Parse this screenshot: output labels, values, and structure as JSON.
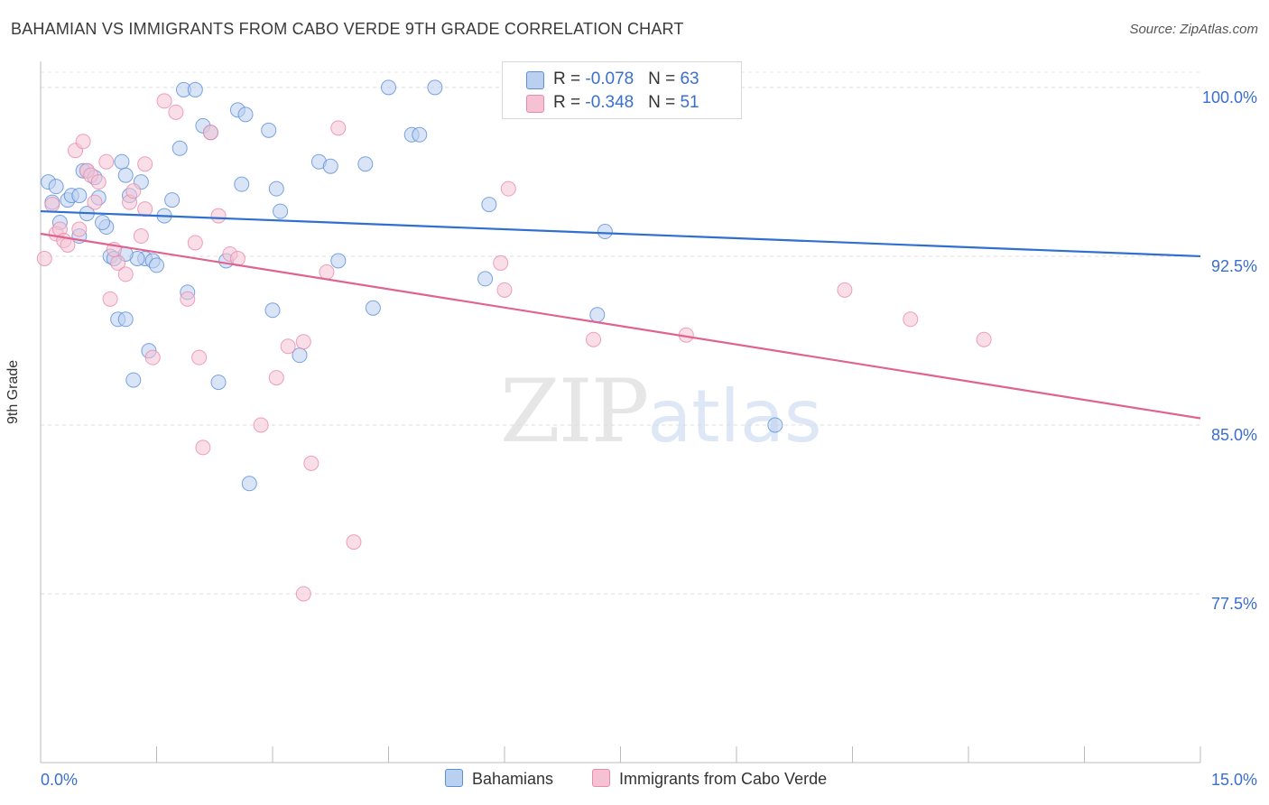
{
  "title": "BAHAMIAN VS IMMIGRANTS FROM CABO VERDE 9TH GRADE CORRELATION CHART",
  "source": "Source: ZipAtlas.com",
  "watermark": {
    "zip": "ZIP",
    "atlas": "atlas"
  },
  "legend": {
    "rows": [
      {
        "r_label": "R = ",
        "r_value": "-0.078",
        "n_label": "N = ",
        "n_value": "63"
      },
      {
        "r_label": "R = ",
        "r_value": "-0.348",
        "n_label": "N = ",
        "n_value": "51"
      }
    ]
  },
  "colors": {
    "blue": "#5b8fd8",
    "blue_fill": "#b9d0f1",
    "blue_line": "#2f6fcf",
    "pink": "#e98aab",
    "pink_fill": "#f6c2d3",
    "pink_line": "#e0638f",
    "tick_text": "#3a6fd0"
  },
  "chart_data": {
    "type": "scatter",
    "title": "BAHAMIAN VS IMMIGRANTS FROM CABO VERDE 9TH GRADE CORRELATION CHART",
    "xlabel": "",
    "ylabel": "9th Grade",
    "xlim": [
      0.0,
      15.0
    ],
    "ylim": [
      70.0,
      101.0
    ],
    "x_tick_labels": [
      "0.0%",
      "15.0%"
    ],
    "y_ticks": [
      100.0,
      92.5,
      85.0,
      77.5
    ],
    "y_tick_labels": [
      "100.0%",
      "92.5%",
      "85.0%",
      "77.5%"
    ],
    "series": [
      {
        "name": "Bahamians",
        "trend": {
          "x": [
            0.0,
            15.0
          ],
          "y": [
            94.5,
            92.5
          ]
        },
        "points": [
          [
            0.1,
            95.8
          ],
          [
            0.15,
            94.9
          ],
          [
            0.2,
            95.6
          ],
          [
            0.25,
            94.0
          ],
          [
            0.35,
            95.0
          ],
          [
            0.4,
            95.2
          ],
          [
            0.5,
            95.2
          ],
          [
            0.55,
            96.3
          ],
          [
            0.6,
            96.3
          ],
          [
            0.7,
            96.0
          ],
          [
            0.75,
            95.1
          ],
          [
            0.85,
            93.8
          ],
          [
            0.8,
            94.0
          ],
          [
            0.9,
            92.5
          ],
          [
            0.95,
            92.4
          ],
          [
            1.05,
            96.7
          ],
          [
            1.1,
            96.1
          ],
          [
            1.15,
            95.2
          ],
          [
            1.3,
            95.8
          ],
          [
            1.35,
            92.4
          ],
          [
            1.45,
            92.3
          ],
          [
            1.5,
            92.1
          ],
          [
            1.6,
            94.3
          ],
          [
            1.7,
            95.0
          ],
          [
            1.8,
            97.3
          ],
          [
            1.85,
            99.9
          ],
          [
            2.0,
            99.9
          ],
          [
            2.1,
            98.3
          ],
          [
            2.2,
            98.0
          ],
          [
            2.4,
            92.3
          ],
          [
            2.6,
            95.7
          ],
          [
            2.55,
            99.0
          ],
          [
            2.65,
            98.8
          ],
          [
            2.95,
            98.1
          ],
          [
            3.05,
            95.5
          ],
          [
            3.1,
            94.5
          ],
          [
            3.6,
            96.7
          ],
          [
            3.75,
            96.5
          ],
          [
            3.85,
            92.3
          ],
          [
            4.2,
            96.6
          ],
          [
            4.3,
            90.2
          ],
          [
            4.5,
            100.0
          ],
          [
            4.8,
            97.9
          ],
          [
            4.9,
            97.9
          ],
          [
            5.1,
            100.0
          ],
          [
            5.8,
            94.8
          ],
          [
            5.75,
            91.5
          ],
          [
            7.3,
            93.6
          ],
          [
            7.2,
            89.9
          ],
          [
            9.5,
            85.0
          ],
          [
            1.0,
            89.7
          ],
          [
            1.1,
            89.7
          ],
          [
            1.2,
            87.0
          ],
          [
            1.4,
            88.3
          ],
          [
            1.9,
            90.9
          ],
          [
            2.3,
            86.9
          ],
          [
            2.7,
            82.4
          ],
          [
            3.0,
            90.1
          ],
          [
            3.35,
            88.1
          ],
          [
            1.25,
            92.4
          ],
          [
            1.1,
            92.6
          ],
          [
            0.5,
            93.4
          ],
          [
            0.6,
            94.4
          ]
        ]
      },
      {
        "name": "Immigrants from Cabo Verde",
        "trend": {
          "x": [
            0.0,
            15.0
          ],
          "y": [
            93.5,
            85.3
          ]
        },
        "points": [
          [
            0.05,
            92.4
          ],
          [
            0.15,
            94.8
          ],
          [
            0.2,
            93.5
          ],
          [
            0.25,
            93.7
          ],
          [
            0.3,
            93.2
          ],
          [
            0.35,
            93.0
          ],
          [
            0.45,
            97.2
          ],
          [
            0.55,
            97.6
          ],
          [
            0.6,
            96.3
          ],
          [
            0.65,
            96.1
          ],
          [
            0.7,
            94.9
          ],
          [
            0.85,
            96.7
          ],
          [
            1.0,
            92.2
          ],
          [
            1.1,
            91.7
          ],
          [
            1.15,
            94.9
          ],
          [
            1.2,
            95.4
          ],
          [
            1.3,
            93.4
          ],
          [
            1.35,
            96.6
          ],
          [
            1.45,
            88.0
          ],
          [
            1.6,
            99.4
          ],
          [
            1.75,
            98.9
          ],
          [
            1.9,
            90.6
          ],
          [
            2.0,
            93.1
          ],
          [
            2.05,
            88.0
          ],
          [
            2.1,
            84.0
          ],
          [
            2.2,
            98.0
          ],
          [
            2.3,
            94.3
          ],
          [
            2.45,
            92.6
          ],
          [
            2.55,
            92.4
          ],
          [
            2.85,
            85.0
          ],
          [
            3.05,
            87.1
          ],
          [
            3.2,
            88.5
          ],
          [
            3.4,
            88.7
          ],
          [
            3.5,
            83.3
          ],
          [
            3.7,
            91.8
          ],
          [
            3.85,
            98.2
          ],
          [
            4.05,
            79.8
          ],
          [
            3.4,
            77.5
          ],
          [
            5.95,
            92.2
          ],
          [
            6.0,
            91.0
          ],
          [
            6.05,
            95.5
          ],
          [
            7.15,
            88.8
          ],
          [
            8.35,
            89.0
          ],
          [
            10.4,
            91.0
          ],
          [
            11.25,
            89.7
          ],
          [
            12.2,
            88.8
          ],
          [
            0.9,
            90.6
          ],
          [
            1.35,
            94.6
          ],
          [
            0.95,
            92.8
          ],
          [
            0.5,
            93.7
          ],
          [
            0.75,
            95.8
          ]
        ]
      }
    ]
  },
  "bottom_legend": [
    "Bahamians",
    "Immigrants from Cabo Verde"
  ]
}
